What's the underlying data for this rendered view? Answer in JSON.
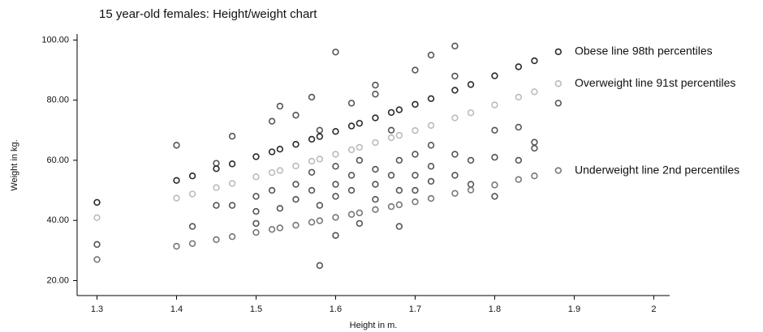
{
  "chart_data": {
    "type": "scatter",
    "title": "15 year-old females: Height/weight chart",
    "x_label": "Height in m.",
    "y_label": "Weight in kg.",
    "xlim": [
      1.275,
      2.02
    ],
    "ylim": [
      15,
      102
    ],
    "xticks": [
      1.3,
      1.4,
      1.5,
      1.6,
      1.7,
      1.8,
      1.9,
      2
    ],
    "yticks": [
      {
        "value": 20,
        "label": "20.00"
      },
      {
        "value": 40,
        "label": "40.00"
      },
      {
        "value": 60,
        "label": "60.00"
      },
      {
        "value": 80,
        "label": "80.00"
      },
      {
        "value": 100,
        "label": "100.00"
      }
    ],
    "series": [
      {
        "color": "#555555",
        "x": [
          1.3,
          1.4,
          1.42,
          1.45,
          1.45,
          1.47,
          1.47,
          1.5,
          1.5,
          1.5,
          1.52,
          1.52,
          1.53,
          1.53,
          1.55,
          1.55,
          1.55,
          1.57,
          1.57,
          1.57,
          1.58,
          1.58,
          1.58,
          1.6,
          1.6,
          1.6,
          1.6,
          1.6,
          1.62,
          1.62,
          1.62,
          1.63,
          1.63,
          1.65,
          1.65,
          1.65,
          1.65,
          1.65,
          1.67,
          1.67,
          1.68,
          1.68,
          1.68,
          1.7,
          1.7,
          1.7,
          1.7,
          1.72,
          1.72,
          1.72,
          1.72,
          1.75,
          1.75,
          1.75,
          1.75,
          1.77,
          1.77,
          1.8,
          1.8,
          1.8,
          1.83,
          1.83,
          1.85,
          1.85,
          1.88
        ],
        "values": [
          32,
          65,
          38,
          59,
          45,
          68,
          45,
          43,
          48,
          39,
          73,
          50,
          78,
          44,
          75,
          52,
          47,
          81,
          56,
          50,
          25,
          70,
          45,
          96,
          35,
          58,
          52,
          48,
          79,
          55,
          50,
          60,
          39,
          85,
          82,
          57,
          52,
          47,
          70,
          55,
          38,
          60,
          50,
          90,
          62,
          55,
          50,
          95,
          65,
          58,
          53,
          98,
          88,
          62,
          55,
          60,
          52,
          70,
          61,
          48,
          71,
          60,
          66,
          64,
          79
        ]
      },
      {
        "name": "Obese line 98th percentiles",
        "color": "#2a2a2a",
        "x": [
          1.3,
          1.4,
          1.42,
          1.45,
          1.47,
          1.5,
          1.52,
          1.53,
          1.55,
          1.57,
          1.58,
          1.6,
          1.62,
          1.63,
          1.65,
          1.67,
          1.68,
          1.7,
          1.72,
          1.75,
          1.77,
          1.8,
          1.83,
          1.85,
          1.88
        ],
        "values": [
          46.0,
          53.3,
          54.8,
          57.2,
          58.8,
          61.2,
          62.8,
          63.7,
          65.3,
          67.0,
          67.9,
          69.6,
          71.4,
          72.3,
          74.1,
          75.9,
          76.8,
          78.6,
          80.5,
          83.3,
          85.2,
          88.1,
          91.1,
          93.1,
          96.1
        ]
      },
      {
        "name": "Overweight line 91st percentiles",
        "color": "#bbbbbb",
        "x": [
          1.3,
          1.4,
          1.42,
          1.45,
          1.47,
          1.5,
          1.52,
          1.53,
          1.55,
          1.57,
          1.58,
          1.6,
          1.62,
          1.63,
          1.65,
          1.67,
          1.68,
          1.7,
          1.72,
          1.75,
          1.77,
          1.8,
          1.83,
          1.85,
          1.88
        ],
        "values": [
          40.9,
          47.4,
          48.8,
          50.9,
          52.3,
          54.5,
          55.9,
          56.6,
          58.1,
          59.7,
          60.4,
          62.0,
          63.5,
          64.3,
          65.9,
          67.5,
          68.3,
          69.9,
          71.6,
          74.1,
          75.8,
          78.4,
          81.0,
          82.8,
          85.5
        ]
      },
      {
        "name": "Underweight line 2nd percentiles",
        "color": "#777777",
        "x": [
          1.3,
          1.4,
          1.42,
          1.45,
          1.47,
          1.5,
          1.52,
          1.53,
          1.55,
          1.57,
          1.58,
          1.6,
          1.62,
          1.63,
          1.65,
          1.67,
          1.68,
          1.7,
          1.72,
          1.75,
          1.77,
          1.8,
          1.83,
          1.85,
          1.88
        ],
        "values": [
          27.0,
          31.4,
          32.3,
          33.6,
          34.6,
          36.0,
          37.0,
          37.5,
          38.4,
          39.4,
          39.9,
          41.0,
          42.0,
          42.5,
          43.6,
          44.6,
          45.2,
          46.2,
          47.3,
          49.0,
          50.1,
          51.8,
          53.6,
          54.8,
          56.6
        ]
      }
    ]
  }
}
